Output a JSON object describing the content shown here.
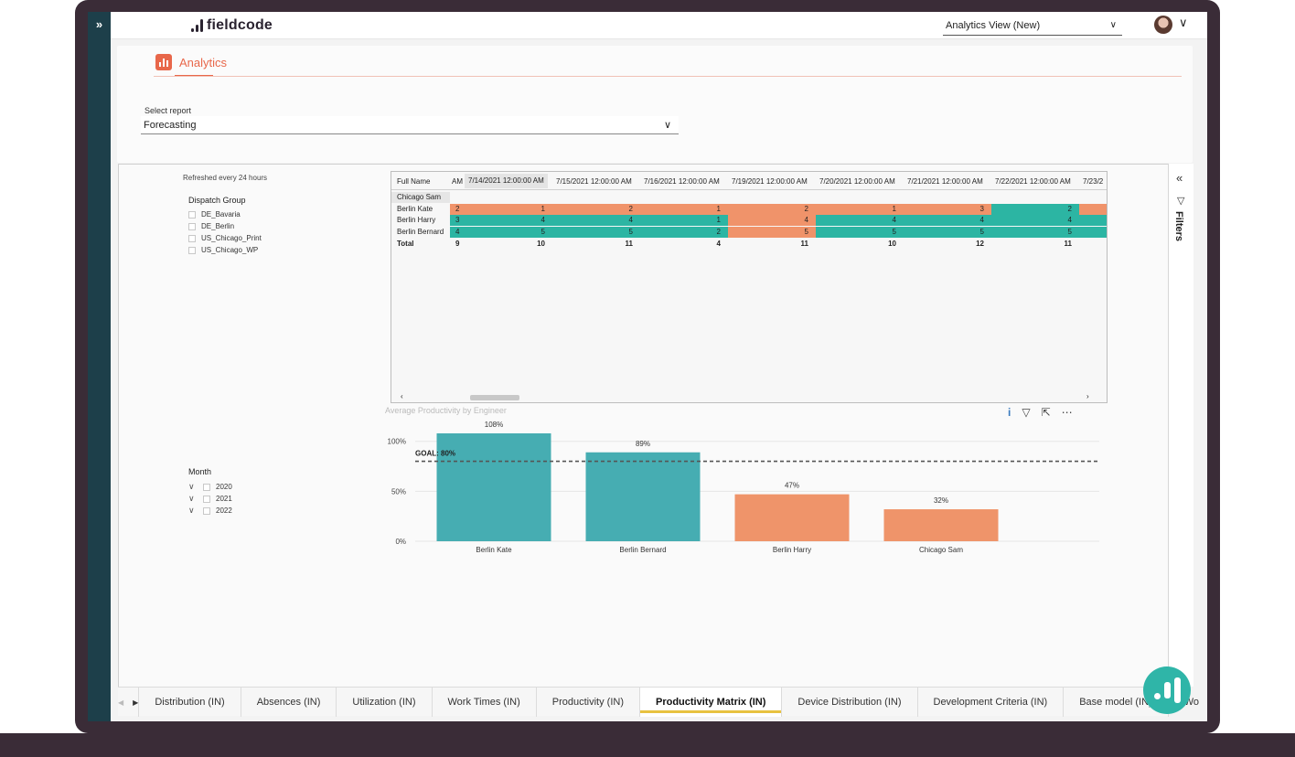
{
  "topbar": {
    "logo_text": "fieldcode",
    "view_select": "Analytics View (New)"
  },
  "page": {
    "tab_label": "Analytics",
    "report_label": "Select report",
    "report_value": "Forecasting"
  },
  "filters": {
    "label": "Filters"
  },
  "slicers": {
    "refreshed": "Refreshed every 24 hours",
    "dispatch_title": "Dispatch Group",
    "dispatch_items": [
      "DE_Bavaria",
      "DE_Berlin",
      "US_Chicago_Print",
      "US_Chicago_WP"
    ],
    "month_title": "Month",
    "month_items": [
      "2020",
      "2021",
      "2022"
    ]
  },
  "matrix": {
    "corner": "Full Name",
    "partial_left": "AM",
    "columns": [
      "7/14/2021 12:00:00 AM",
      "7/15/2021 12:00:00 AM",
      "7/16/2021 12:00:00 AM",
      "7/19/2021 12:00:00 AM",
      "7/20/2021 12:00:00 AM",
      "7/21/2021 12:00:00 AM",
      "7/22/2021 12:00:00 AM",
      "7/23/2"
    ],
    "rows": [
      {
        "name": "Chicago Sam",
        "left": "",
        "values": [
          "",
          "",
          "",
          "",
          "",
          "",
          "",
          ""
        ]
      },
      {
        "name": "Berlin Kate",
        "left": "2",
        "values": [
          "1",
          "2",
          "1",
          "2",
          "1",
          "3",
          "2",
          ""
        ]
      },
      {
        "name": "Berlin Harry",
        "left": "3",
        "values": [
          "4",
          "4",
          "1",
          "4",
          "4",
          "4",
          "4",
          ""
        ]
      },
      {
        "name": "Berlin Bernard",
        "left": "4",
        "values": [
          "5",
          "5",
          "2",
          "5",
          "5",
          "5",
          "5",
          ""
        ]
      },
      {
        "name": "Total",
        "left": "9",
        "values": [
          "10",
          "11",
          "4",
          "11",
          "10",
          "12",
          "11",
          ""
        ]
      }
    ],
    "colors": {
      "high": "#2cb5a3",
      "low": "#f0936a"
    },
    "row_colors": [
      [],
      [
        "low",
        "low",
        "low",
        "low",
        "low",
        "low",
        "high",
        "low"
      ],
      [
        "high",
        "high",
        "high",
        "low",
        "high",
        "high",
        "high",
        "high"
      ],
      [
        "high",
        "high",
        "high",
        "low",
        "high",
        "high",
        "high",
        "high"
      ]
    ]
  },
  "chart_title": "Average Productivity by Engineer",
  "chart_data": {
    "type": "bar",
    "title": "Average Productivity by Engineer",
    "categories": [
      "Berlin Kate",
      "Berlin Bernard",
      "Berlin Harry",
      "Chicago Sam"
    ],
    "values": [
      108,
      89,
      47,
      32
    ],
    "value_labels": [
      "108%",
      "89%",
      "47%",
      "32%"
    ],
    "bar_colors": [
      "#46adb2",
      "#46adb2",
      "#ef946a",
      "#ef946a"
    ],
    "y_ticks": [
      "0%",
      "50%",
      "100%"
    ],
    "y_tick_values": [
      0,
      50,
      100
    ],
    "ylim": [
      0,
      108
    ],
    "goal": {
      "value": 80,
      "label": "GOAL: 80%"
    },
    "grid": true
  },
  "bottom_tabs": [
    "Distribution (IN)",
    "Absences (IN)",
    "Utilization (IN)",
    "Work Times (IN)",
    "Productivity (IN)",
    "Productivity Matrix (IN)",
    "Device Distribution (IN)",
    "Development Criteria (IN)",
    "Base model (IN)",
    "Wo"
  ],
  "active_tab": 5
}
